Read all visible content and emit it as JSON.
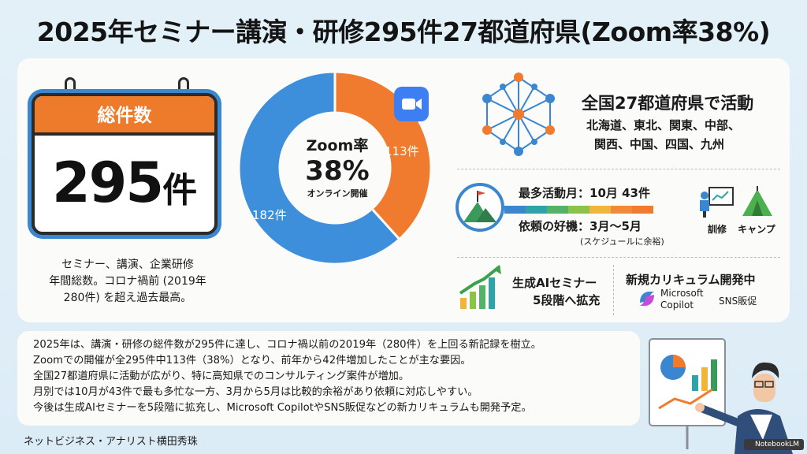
{
  "title": "2025年セミナー講演・研修295件27都道府県(Zoom率38%)",
  "calendar": {
    "header": "総件数",
    "number": "295",
    "unit": "件"
  },
  "left_text": [
    "セミナー、講演、企業研修",
    "年間総数。コロナ禍前 (2019年",
    "280件) を超え過去最高。"
  ],
  "donut": {
    "label": "Zoom率",
    "value": "38%",
    "sub": "オンライン開催",
    "zoom_count": "113件",
    "other_count": "182件",
    "zoom_value": 113,
    "other_value": 182,
    "zoom_color": "#f07a2e",
    "other_color": "#3d8fdb"
  },
  "regions": {
    "title": "全国27都道府県で活動",
    "line1": "北海道、東北、関東、中部、",
    "line2": "関西、中国、四国、九州"
  },
  "months": {
    "peak": "最多活動月：10月 43件",
    "window": "依頼の好機：3月〜5月",
    "note": "(スケジュールに余裕)",
    "strip_colors": [
      "#3a86cf",
      "#2fa3a6",
      "#55b06a",
      "#8cc24a",
      "#f0b63a",
      "#ef8a3a",
      "#f07a2e"
    ]
  },
  "icons": {
    "training": "訓修",
    "camp": "キャンプ"
  },
  "ai": {
    "line1": "生成AIセミナー",
    "line2": "5段階へ拡充"
  },
  "curriculum": {
    "title": "新規カリキュラム開発中",
    "copilot1": "Microsoft",
    "copilot2": "Copilot",
    "sns": "SNS販促"
  },
  "summary": [
    "2025年は、講演・研修の総件数が295件に達し、コロナ禍以前の2019年（280件）を上回る新記録を樹立。",
    "Zoomでの開催が全295件中113件（38%）となり、前年から42件増加したことが主な要因。",
    "全国27都道府県に活動が広がり、特に高知県でのコンサルティング案件が増加。",
    "月別では10月が43件で最も多忙な一方、3月から5月は比較的余裕があり依頼に対応しやすい。",
    "今後は生成AIセミナーを5段階に拡充し、Microsoft CopilotやSNS販促などの新カリキュラムも開発予定。"
  ],
  "author": "ネットビジネス・アナリスト横田秀珠",
  "watermark": "NotebookLM"
}
